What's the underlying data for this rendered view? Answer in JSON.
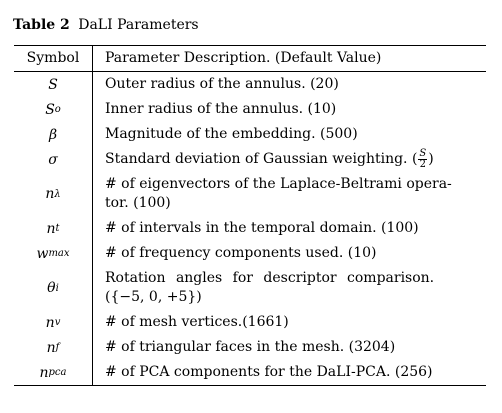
{
  "caption": {
    "label": "Table 2",
    "title": "DaLI Parameters"
  },
  "header": {
    "symbol": "Symbol",
    "description": "Parameter Description. (Default Value)"
  },
  "rows": [
    {
      "symbol": "S",
      "description": "Outer radius of the annulus. (20)"
    },
    {
      "symbol_base": "S",
      "symbol_sub": "o",
      "description": "Inner radius of the annulus. (10)"
    },
    {
      "symbol": "β",
      "description": "Magnitude of the embedding. (500)"
    },
    {
      "symbol": "σ",
      "description_prefix": "Standard deviation of Gaussian weighting. (",
      "frac_num": "S",
      "frac_den": "2",
      "description_suffix": ")"
    },
    {
      "symbol_base": "n",
      "symbol_sub": "λ",
      "description": "# of eigenvectors of the Laplace-Beltrami operator. (100)",
      "description_line1": "# of eigenvectors of the Laplace-Beltrami opera-",
      "description_line2": "tor. (100)"
    },
    {
      "symbol_base": "n",
      "symbol_sub": "t",
      "description": "# of intervals in the temporal domain. (100)"
    },
    {
      "symbol_base": "w",
      "symbol_sub": "max",
      "description": "# of frequency components used. (10)"
    },
    {
      "symbol_base": "θ",
      "symbol_sub": "i",
      "description_line1": "Rotation angles for descriptor comparison.",
      "description_line2": "({−5, 0, +5})"
    },
    {
      "symbol_base": "n",
      "symbol_sub": "v",
      "description": "# of mesh vertices.(1661)"
    },
    {
      "symbol_base": "n",
      "symbol_sub": "f",
      "description": "# of triangular faces in the mesh. (3204)"
    },
    {
      "symbol_base": "n",
      "symbol_sub": "pca",
      "description": "# of PCA components for the DaLI-PCA. (256)"
    }
  ]
}
